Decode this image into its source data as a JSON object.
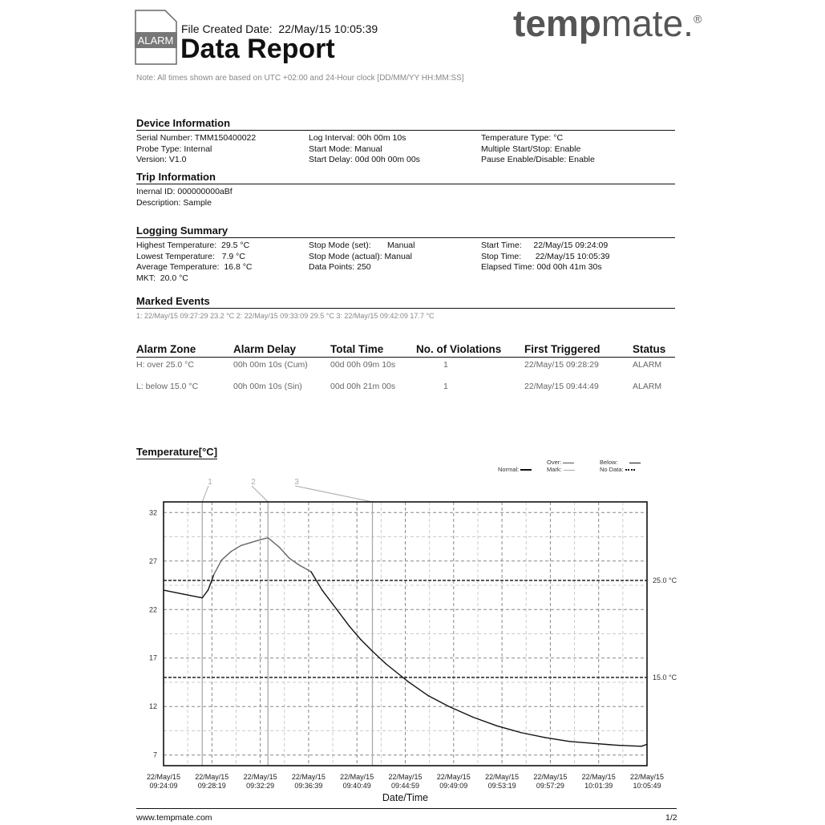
{
  "header": {
    "badge": "ALARM",
    "created_label": "File Created Date:",
    "created_value": "22/May/15 10:05:39",
    "title": "Data Report",
    "logo_bold": "temp",
    "logo_rest": "mate.",
    "logo_reg": "®",
    "note": "Note: All times shown are based on UTC +02:00 and 24-Hour clock [DD/MM/YY HH:MM:SS]"
  },
  "device": {
    "title": "Device Information",
    "cols": [
      [
        "Serial Number:  TMM150400022",
        "Probe Type: Internal",
        "Version: V1.0"
      ],
      [
        "Log Interval:  00h 00m 10s",
        "Start Mode:   Manual",
        "Start Delay:  00d 00h 00m 00s"
      ],
      [
        "Temperature Type: °C",
        "Multiple Start/Stop: Enable",
        "Pause Enable/Disable: Enable"
      ]
    ]
  },
  "trip": {
    "title": "Trip Information",
    "lines": [
      "Inernal ID:    000000000aBf",
      "Description:  Sample"
    ]
  },
  "summary": {
    "title": "Logging Summary",
    "cols": [
      [
        "Highest Temperature:  29.5 °C",
        "Lowest Temperature:   7.9 °C",
        "Average Temperature:  16.8 °C",
        "MKT:  20.0 °C"
      ],
      [
        "Stop Mode (set):       Manual",
        "Stop Mode (actual): Manual",
        "Data Points: 250"
      ],
      [
        "Start Time:     22/May/15 09:24:09",
        "Stop Time:      22/May/15 10:05:39",
        "Elapsed Time: 00d 00h 41m 30s"
      ]
    ]
  },
  "events": {
    "title": "Marked Events",
    "text": "1: 22/May/15 09:27:29   23.2 °C 2: 22/May/15 09:33:09   29.5 °C 3: 22/May/15 09:42:09   17.7 °C"
  },
  "alarms": {
    "headers": [
      "Alarm Zone",
      "Alarm Delay",
      "Total Time",
      "No. of Violations",
      "First Triggered",
      "Status"
    ],
    "rows": [
      [
        "H: over  25.0 °C",
        "00h 00m 10s (Cum)",
        "00d 00h 09m 10s",
        "1",
        "22/May/15 09:28:29",
        "ALARM"
      ],
      [
        "L: below  15.0 °C",
        "00h 00m 10s (Sin)",
        "00d 00h 21m 00s",
        "1",
        "22/May/15 09:44:49",
        "ALARM"
      ]
    ]
  },
  "chart_title": "Temperature[°C]",
  "legend": {
    "normal": "Normal:",
    "over": "Over:",
    "mark": "Mark:",
    "below": "Below:",
    "nodata": "No Data:"
  },
  "footer": {
    "url": "www.tempmate.com",
    "page": "1/2"
  },
  "chart_data": {
    "type": "line",
    "xlabel": "Date/Time",
    "ylabel": "",
    "ylim": [
      5.9,
      33.1
    ],
    "yticks": [
      7,
      12,
      17,
      22,
      27,
      32
    ],
    "xticks": [
      "22/May/15\n09:24:09",
      "22/May/15\n09:28:19",
      "22/May/15\n09:32:29",
      "22/May/15\n09:36:39",
      "22/May/15\n09:40:49",
      "22/May/15\n09:44:59",
      "22/May/15\n09:49:09",
      "22/May/15\n09:53:19",
      "22/May/15\n09:57:29",
      "22/May/15\n10:01:39",
      "22/May/15\n10:05:49"
    ],
    "x_seconds_range": [
      0,
      2500
    ],
    "thresholds": [
      {
        "value": 25.0,
        "label": "25.0 °C"
      },
      {
        "value": 15.0,
        "label": "15.0 °C"
      }
    ],
    "marks": [
      {
        "label": "1",
        "t": "09:27:29",
        "x": 200
      },
      {
        "label": "2",
        "t": "09:33:09",
        "x": 540
      },
      {
        "label": "3",
        "t": "09:42:09",
        "x": 1080
      }
    ],
    "series": [
      {
        "x": [
          0,
          100,
          200,
          230,
          260,
          300,
          350,
          400,
          450,
          500,
          540,
          600,
          650,
          700,
          763,
          820,
          896,
          960,
          1020,
          1080,
          1150,
          1269,
          1370,
          1476,
          1600,
          1725,
          1850,
          1973,
          2100,
          2222,
          2350,
          2471,
          2500
        ],
        "y": [
          24.0,
          23.6,
          23.2,
          24.0,
          25.6,
          27.1,
          28.0,
          28.6,
          28.9,
          29.2,
          29.4,
          28.4,
          27.3,
          26.6,
          25.9,
          24.0,
          22.0,
          20.3,
          18.9,
          17.7,
          16.4,
          14.5,
          13.1,
          12.0,
          10.9,
          10.0,
          9.3,
          8.8,
          8.4,
          8.2,
          8.0,
          7.9,
          8.1
        ]
      }
    ]
  }
}
